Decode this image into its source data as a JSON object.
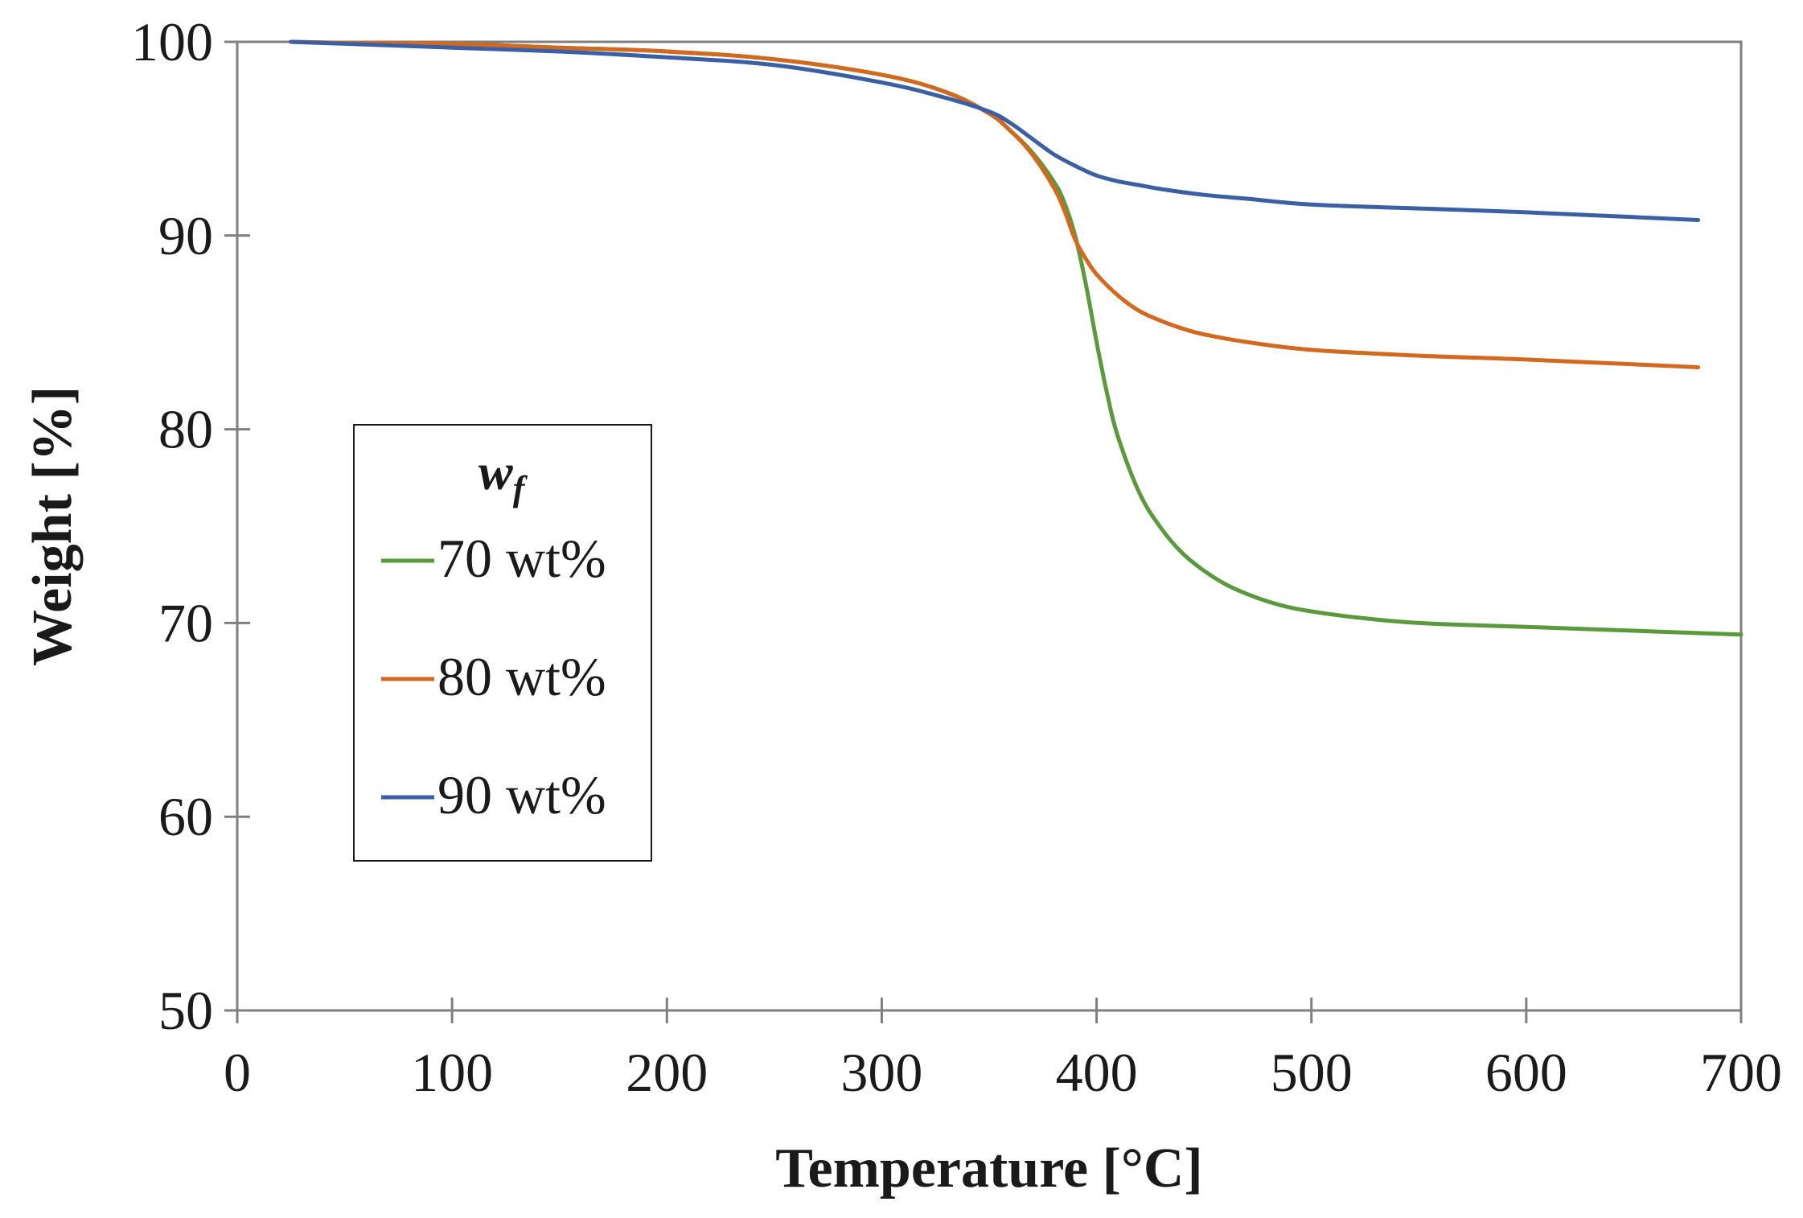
{
  "chart_data": {
    "type": "line",
    "title": "",
    "xlabel": "Temperature [°C]",
    "ylabel": "Weight [%]",
    "xlim": [
      0,
      700
    ],
    "ylim": [
      50,
      100
    ],
    "xticks": [
      0,
      100,
      200,
      300,
      400,
      500,
      600,
      700
    ],
    "yticks": [
      50,
      60,
      70,
      80,
      90,
      100
    ],
    "xtick_labels": [
      "0",
      "100",
      "200",
      "300",
      "400",
      "500",
      "600",
      "700"
    ],
    "ytick_labels": [
      "50",
      "60",
      "70",
      "80",
      "90",
      "100"
    ],
    "grid": false,
    "legend": {
      "title_main": "w",
      "title_sub": "f",
      "position": "middle-left"
    },
    "series": [
      {
        "name": "70 wt%",
        "color": "#5a9a3c",
        "x": [
          25,
          50,
          100,
          150,
          200,
          250,
          300,
          330,
          350,
          360,
          370,
          380,
          385,
          390,
          395,
          400,
          405,
          410,
          420,
          430,
          440,
          450,
          460,
          470,
          480,
          490,
          500,
          520,
          550,
          600,
          650,
          700
        ],
        "y": [
          100,
          99.95,
          99.9,
          99.7,
          99.5,
          99.1,
          98.3,
          97.4,
          96.3,
          95.4,
          94.3,
          92.8,
          91.7,
          90.0,
          87.5,
          84.5,
          81.8,
          79.6,
          76.7,
          74.9,
          73.6,
          72.7,
          72.0,
          71.5,
          71.1,
          70.8,
          70.6,
          70.3,
          70.0,
          69.8,
          69.6,
          69.4
        ]
      },
      {
        "name": "80 wt%",
        "color": "#d2691e",
        "x": [
          25,
          50,
          100,
          150,
          200,
          250,
          300,
          330,
          350,
          360,
          370,
          380,
          385,
          390,
          395,
          400,
          410,
          420,
          430,
          440,
          450,
          470,
          500,
          550,
          600,
          680
        ],
        "y": [
          100,
          99.95,
          99.9,
          99.7,
          99.5,
          99.1,
          98.3,
          97.4,
          96.3,
          95.4,
          94.2,
          92.5,
          91.3,
          89.8,
          88.8,
          88.0,
          86.9,
          86.1,
          85.6,
          85.2,
          84.9,
          84.5,
          84.1,
          83.8,
          83.6,
          83.2
        ]
      },
      {
        "name": "90 wt%",
        "color": "#3a5fa5",
        "x": [
          25,
          50,
          100,
          150,
          200,
          250,
          300,
          330,
          350,
          360,
          370,
          380,
          390,
          400,
          410,
          420,
          430,
          450,
          470,
          500,
          550,
          600,
          680
        ],
        "y": [
          100,
          99.9,
          99.7,
          99.5,
          99.2,
          98.8,
          97.9,
          97.1,
          96.4,
          95.8,
          95.0,
          94.2,
          93.6,
          93.1,
          92.8,
          92.6,
          92.4,
          92.1,
          91.9,
          91.6,
          91.4,
          91.2,
          90.8
        ]
      }
    ]
  }
}
